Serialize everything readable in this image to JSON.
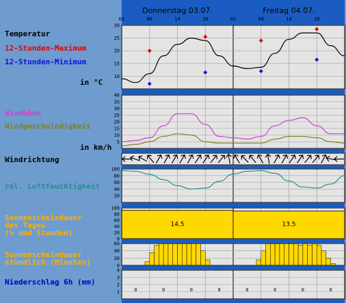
{
  "colors": {
    "bg": "#6e9ccf",
    "plot": "#e4e4e4",
    "band": "#1a5cc2",
    "grid": "#a0a0a0",
    "temp": "#000000",
    "tmax": "#e00000",
    "tmin": "#1010e0",
    "gust": "#d040d0",
    "wind": "#808020",
    "hum": "#209090",
    "sun": "#ffd800",
    "rain": "#0000c0"
  },
  "header": {
    "days": [
      "Donnerstag 03.07.",
      "Freitag 04.07."
    ],
    "hours": [
      "02",
      "08",
      "14",
      "20",
      "02",
      "08",
      "14",
      "20"
    ]
  },
  "labels": {
    "temp": "Temperatur",
    "tmax": "12-Stunden-Maximum",
    "tmin": "12-Stunden-Minimum",
    "temp_unit": "in °C",
    "gust": "Windböen",
    "wind": "Windgeschwindigkeit",
    "wind_unit": "in km/h",
    "dir": "Windrichtung",
    "hum": "rel. Luftfeuchtigkeit",
    "sunday": "Sonnenscheindauer\ndes Tages\n(% und Stunden)",
    "sunhour": "Sonnenscheindauer\nstündlich (Minuten)",
    "rain": "Niederschlag 6h (mm)"
  },
  "chart_data": [
    {
      "type": "line",
      "panel": "temperature",
      "ylim": [
        5,
        30
      ],
      "yticks": [
        "30",
        "25",
        "20",
        "15",
        "10"
      ],
      "x_hours": [
        0,
        3,
        6,
        9,
        12,
        15,
        18,
        21,
        24,
        27,
        30,
        33,
        36,
        39,
        42,
        45,
        48
      ],
      "series": [
        {
          "values": [
            9,
            7.5,
            11,
            18,
            22.5,
            25,
            24,
            18,
            14,
            13,
            13.5,
            19,
            24.5,
            27,
            27,
            22,
            18
          ]
        }
      ],
      "tmax": [
        {
          "x": 6,
          "value": 20
        },
        {
          "x": 18,
          "value": 25.5
        },
        {
          "x": 30,
          "value": 24
        },
        {
          "x": 42,
          "value": 28.5
        }
      ],
      "tmin": [
        {
          "x": 6,
          "value": 7
        },
        {
          "x": 18,
          "value": 11.5
        },
        {
          "x": 30,
          "value": 12
        },
        {
          "x": 42,
          "value": 16.5
        }
      ]
    },
    {
      "type": "line",
      "panel": "wind",
      "ylim": [
        0,
        40
      ],
      "yticks": [
        "40",
        "35",
        "30",
        "25",
        "20",
        "15",
        "10",
        "5"
      ],
      "x_hours": [
        0,
        3,
        6,
        9,
        12,
        15,
        18,
        21,
        24,
        27,
        30,
        33,
        36,
        39,
        42,
        45,
        48
      ],
      "series": [
        {
          "values": [
            5,
            6,
            8,
            17,
            26,
            26,
            18,
            9,
            8,
            7,
            9,
            17,
            21,
            23,
            17,
            11,
            11
          ]
        },
        {
          "values": [
            2,
            3,
            5,
            9,
            11,
            10,
            5,
            4,
            4,
            4,
            4,
            7,
            9,
            9,
            8,
            5,
            4
          ]
        }
      ]
    },
    {
      "type": "line",
      "panel": "humidity",
      "ylim": [
        0,
        100
      ],
      "yticks": [
        "100",
        "80",
        "60",
        "40",
        "20"
      ],
      "x_hours": [
        0,
        3,
        6,
        9,
        12,
        15,
        18,
        21,
        24,
        27,
        30,
        33,
        36,
        39,
        42,
        45,
        48
      ],
      "series": [
        {
          "values": [
            95,
            93,
            84,
            68,
            50,
            40,
            43,
            63,
            85,
            93,
            95,
            87,
            64,
            46,
            43,
            55,
            80
          ]
        }
      ]
    },
    {
      "type": "bar",
      "panel": "sunshine-daily",
      "ylim": [
        0,
        100
      ],
      "yticks": [
        "100",
        "80",
        "60",
        "40",
        "20",
        "0"
      ],
      "days": [
        {
          "percent": 92,
          "hours": "14.5"
        },
        {
          "percent": 90,
          "hours": "13.5"
        }
      ]
    },
    {
      "type": "bar",
      "panel": "sunshine-hourly",
      "ylim": [
        0,
        60
      ],
      "yticks": [
        "60",
        "40",
        "20",
        "0"
      ],
      "minutes": [
        0,
        0,
        0,
        0,
        0,
        10,
        35,
        55,
        60,
        60,
        60,
        60,
        60,
        60,
        60,
        60,
        60,
        40,
        15,
        0,
        0,
        0,
        0,
        0,
        0,
        0,
        0,
        0,
        0,
        15,
        40,
        60,
        60,
        60,
        60,
        60,
        60,
        60,
        55,
        60,
        55,
        60,
        55,
        40,
        20,
        5,
        0,
        0
      ]
    },
    {
      "type": "bar",
      "panel": "precipitation",
      "ylim": [
        0,
        4
      ],
      "yticks": [
        "4",
        "3",
        "2",
        "1"
      ],
      "values": [
        "0",
        "0",
        "0",
        "0",
        "0",
        "0",
        "0",
        "0"
      ]
    }
  ],
  "wind_dirs": [
    270,
    290,
    300,
    320,
    30,
    30,
    30,
    30,
    30,
    35,
    35,
    40,
    40,
    350,
    330,
    315,
    320,
    330,
    350,
    30,
    30,
    35,
    35,
    40,
    40,
    30,
    280,
    270
  ]
}
